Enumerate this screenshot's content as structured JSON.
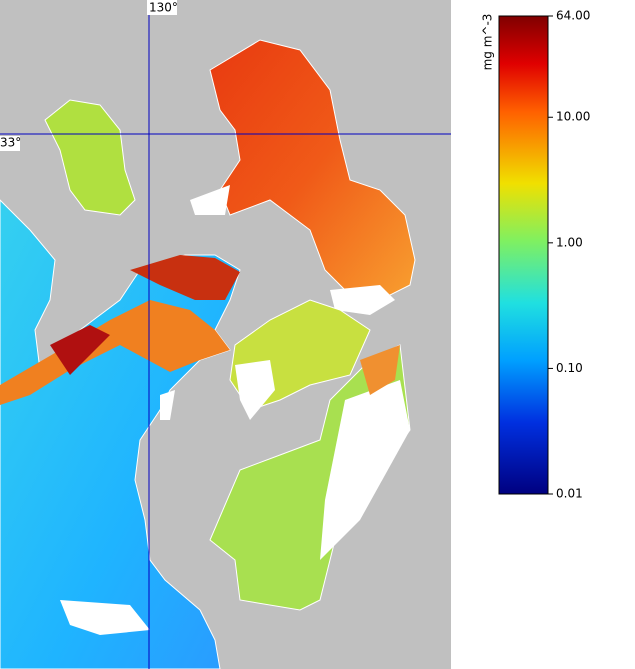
{
  "map": {
    "longitude_label": "130°",
    "latitude_label": "33°"
  },
  "colorbar": {
    "title": "mg m^-3",
    "scale": "log",
    "lim": [
      0.01,
      64
    ],
    "ticks": [
      {
        "value": 64,
        "label": "64.00"
      },
      {
        "value": 10,
        "label": "10.00"
      },
      {
        "value": 1,
        "label": "1.00"
      },
      {
        "value": 0.1,
        "label": "0.10"
      },
      {
        "value": 0.01,
        "label": "0.01"
      }
    ]
  }
}
